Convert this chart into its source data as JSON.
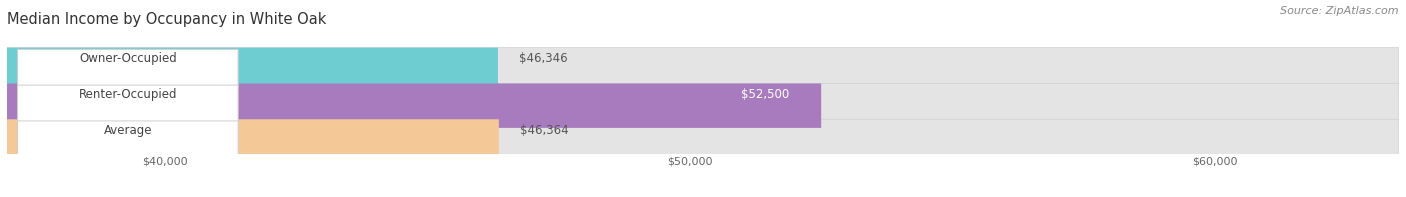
{
  "title": "Median Income by Occupancy in White Oak",
  "source": "Source: ZipAtlas.com",
  "categories": [
    "Owner-Occupied",
    "Renter-Occupied",
    "Average"
  ],
  "values": [
    46346,
    52500,
    46364
  ],
  "bar_colors": [
    "#6dcdd0",
    "#a87bbf",
    "#f5c897"
  ],
  "track_color": "#e4e4e4",
  "track_edge_color": "#d0d0d0",
  "value_labels": [
    "$46,346",
    "$52,500",
    "$46,364"
  ],
  "value_label_colors": [
    "#555555",
    "#ffffff",
    "#555555"
  ],
  "xmin": 37000,
  "xmax": 63500,
  "xticks": [
    40000,
    50000,
    60000
  ],
  "xticklabels": [
    "$40,000",
    "$50,000",
    "$60,000"
  ],
  "bar_height": 0.62,
  "background_color": "#ffffff",
  "title_fontsize": 10.5,
  "label_fontsize": 8.5,
  "value_fontsize": 8.5,
  "source_fontsize": 8,
  "label_box_color": "#ffffff",
  "label_box_edge": "#cccccc"
}
